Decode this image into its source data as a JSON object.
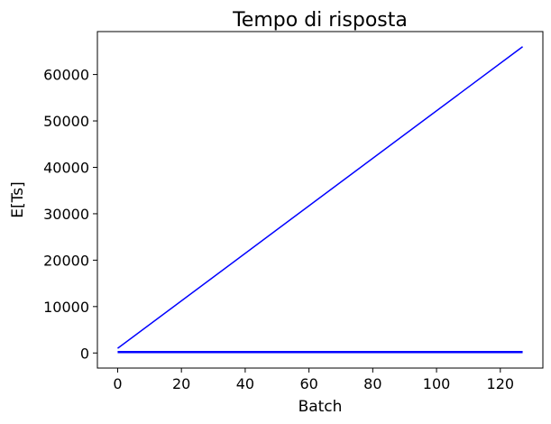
{
  "chart_data": {
    "type": "line",
    "title": "Tempo di risposta",
    "xlabel": "Batch",
    "ylabel": "E[Ts]",
    "xlim": [
      -6.35,
      133.35
    ],
    "ylim": [
      -3250,
      69250
    ],
    "xticks": [
      0,
      20,
      40,
      60,
      80,
      100,
      120
    ],
    "xtick_labels": [
      "0",
      "20",
      "40",
      "60",
      "80",
      "100",
      "120"
    ],
    "yticks": [
      0,
      10000,
      20000,
      30000,
      40000,
      50000,
      60000
    ],
    "ytick_labels": [
      "0",
      "10000",
      "20000",
      "30000",
      "40000",
      "50000",
      "60000"
    ],
    "grid": false,
    "series": [
      {
        "color": "#0000ff",
        "linewidth": 1.5,
        "x": [
          0,
          127
        ],
        "y": [
          1000,
          66000
        ]
      },
      {
        "color": "#0000ff",
        "linewidth": 2.5,
        "x": [
          0,
          127
        ],
        "y": [
          200,
          200
        ]
      }
    ]
  }
}
